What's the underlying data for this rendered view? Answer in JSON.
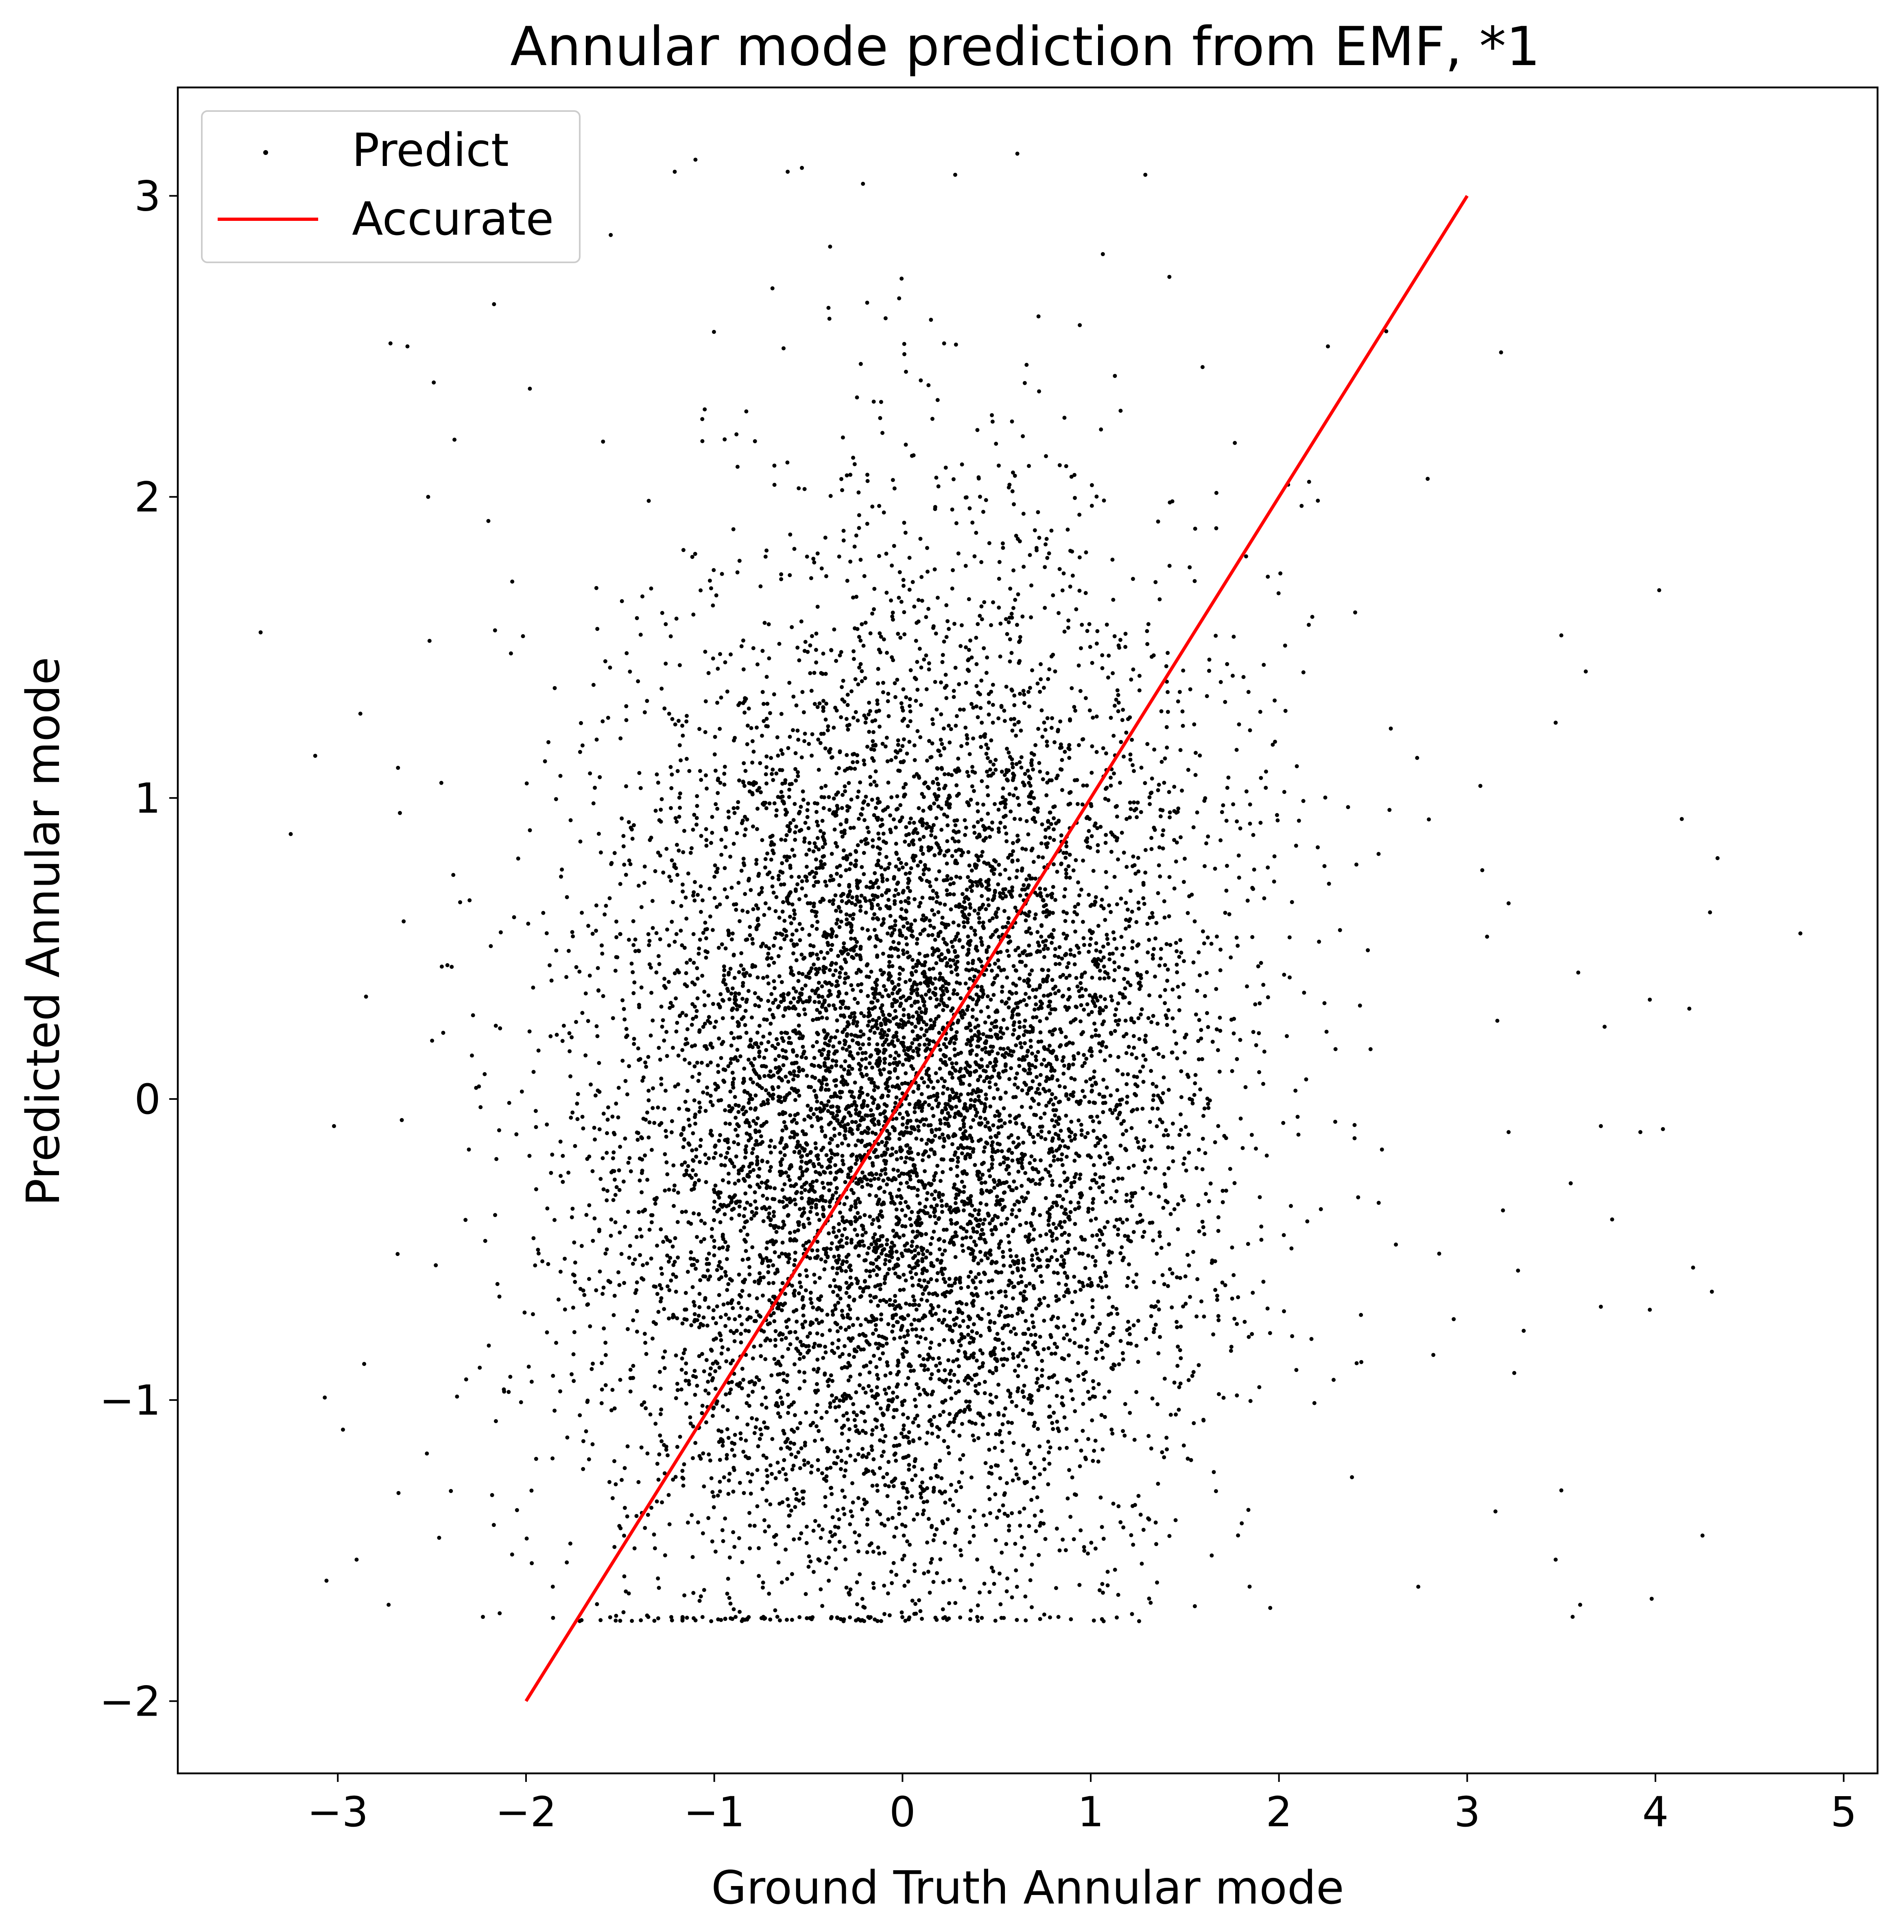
{
  "chart_data": {
    "type": "scatter",
    "title": "Annular mode prediction from EMF, *1",
    "xlabel": "Ground Truth Annular mode",
    "ylabel": "Predicted Annular mode",
    "xlim": [
      -3.85,
      5.18
    ],
    "ylim": [
      -2.24,
      3.36
    ],
    "x_ticks": [
      -3,
      -2,
      -1,
      0,
      1,
      2,
      3,
      4,
      5
    ],
    "y_ticks": [
      -2,
      -1,
      0,
      1,
      2,
      3
    ],
    "x_tick_labels": [
      "−3",
      "−2",
      "−1",
      "0",
      "1",
      "2",
      "3",
      "4",
      "5"
    ],
    "y_tick_labels": [
      "−2",
      "−1",
      "0",
      "1",
      "2",
      "3"
    ],
    "grid": false,
    "legend": {
      "placement": "top-left",
      "entries": [
        {
          "label": "Predict",
          "marker": "point",
          "color": "#000000"
        },
        {
          "label": "Accurate",
          "marker": "line",
          "color": "#ff0000"
        }
      ]
    },
    "series": [
      {
        "name": "Predict",
        "kind": "scatter",
        "color": "#000000",
        "description_of_distribution": "approx. 10000 points, ground truth ~N(0,0.9), predicted ~N(0,0.9) weakly correlated, clipped at floor -1.72",
        "floor": -1.72,
        "points": [
          [
            -3.41,
            1.55
          ],
          [
            -3.25,
            0.88
          ],
          [
            -3.12,
            1.14
          ],
          [
            -3.02,
            -0.09
          ],
          [
            -3.06,
            -1.6
          ],
          [
            -2.88,
            1.28
          ],
          [
            -2.85,
            0.34
          ],
          [
            -2.86,
            -0.88
          ],
          [
            -2.9,
            -1.53
          ],
          [
            -2.72,
            2.51
          ],
          [
            -2.63,
            2.5
          ],
          [
            -2.68,
            1.1
          ],
          [
            -2.67,
            0.95
          ],
          [
            -2.65,
            0.59
          ],
          [
            -2.66,
            -0.07
          ],
          [
            -2.73,
            -1.68
          ],
          [
            -2.52,
            2.0
          ],
          [
            -2.49,
            2.38
          ],
          [
            -2.45,
            1.05
          ],
          [
            -2.44,
            0.22
          ],
          [
            -2.38,
            2.19
          ],
          [
            -2.3,
            0.66
          ],
          [
            -2.2,
            1.92
          ],
          [
            -2.17,
            2.64
          ],
          [
            -2.16,
            -1.07
          ],
          [
            -2.08,
            1.48
          ],
          [
            -1.96,
            0.09
          ],
          [
            -1.84,
            -0.81
          ],
          [
            -1.55,
            2.87
          ],
          [
            -1.21,
            3.08
          ],
          [
            -1.1,
            3.12
          ],
          [
            -0.61,
            3.08
          ],
          [
            -0.21,
            3.04
          ],
          [
            0.28,
            3.07
          ],
          [
            0.61,
            3.14
          ],
          [
            1.29,
            3.07
          ],
          [
            2.26,
            2.5
          ],
          [
            2.57,
            2.55
          ],
          [
            3.18,
            2.48
          ],
          [
            2.16,
            2.05
          ],
          [
            2.79,
            2.06
          ],
          [
            3.07,
            1.04
          ],
          [
            3.47,
            1.25
          ],
          [
            3.5,
            1.54
          ],
          [
            3.63,
            1.42
          ],
          [
            4.02,
            1.69
          ],
          [
            4.14,
            0.93
          ],
          [
            4.33,
            0.8
          ],
          [
            4.77,
            0.55
          ],
          [
            4.29,
            0.62
          ],
          [
            3.59,
            0.42
          ],
          [
            3.73,
            0.24
          ],
          [
            3.97,
            0.33
          ],
          [
            4.18,
            0.3
          ],
          [
            3.71,
            -0.09
          ],
          [
            3.92,
            -0.11
          ],
          [
            4.04,
            -0.1
          ],
          [
            3.77,
            -0.4
          ],
          [
            3.55,
            -0.28
          ],
          [
            4.2,
            -0.56
          ],
          [
            4.3,
            -0.64
          ],
          [
            3.71,
            -0.69
          ],
          [
            3.97,
            -0.7
          ],
          [
            3.5,
            -1.3
          ],
          [
            3.47,
            -1.53
          ],
          [
            3.56,
            -1.72
          ],
          [
            3.6,
            -1.68
          ],
          [
            3.98,
            -1.66
          ],
          [
            4.25,
            -1.45
          ],
          [
            3.3,
            -0.77
          ],
          [
            3.27,
            -0.57
          ],
          [
            3.22,
            -0.11
          ],
          [
            3.19,
            -0.37
          ],
          [
            3.25,
            -0.91
          ],
          [
            3.15,
            -1.37
          ],
          [
            3.08,
            0.76
          ],
          [
            3.16,
            0.26
          ],
          [
            3.22,
            0.65
          ],
          [
            2.82,
            -0.85
          ],
          [
            2.74,
            -1.62
          ]
        ]
      },
      {
        "name": "Accurate",
        "kind": "line",
        "color": "#ff0000",
        "x": [
          -2,
          3
        ],
        "y": [
          -2,
          3
        ]
      }
    ]
  }
}
